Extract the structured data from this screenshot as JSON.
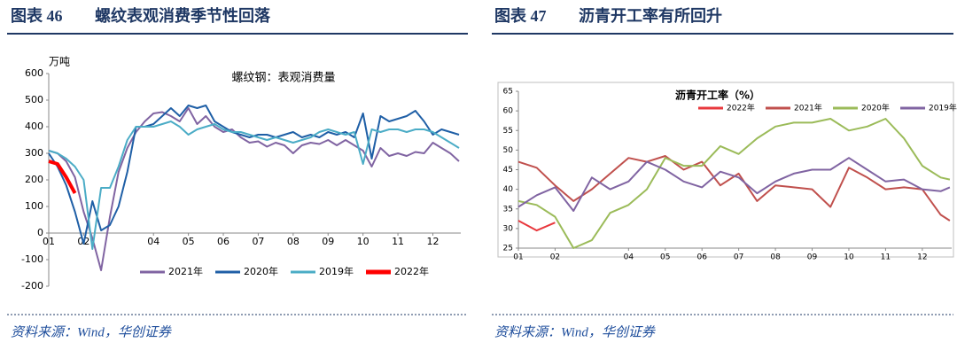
{
  "chart_data": [
    {
      "type": "line",
      "label": "图表 46",
      "title": "螺纹表观消费季节性回落",
      "annotation": "螺纹钢：表观消费量",
      "ylabel": "万吨",
      "source": "资料来源：Wind，华创证券",
      "x": [
        1,
        1.25,
        1.5,
        1.75,
        2,
        2.25,
        2.5,
        2.75,
        3,
        3.25,
        3.5,
        3.75,
        4,
        4.25,
        4.5,
        4.75,
        5,
        5.25,
        5.5,
        5.75,
        6,
        6.25,
        6.5,
        6.75,
        7,
        7.25,
        7.5,
        7.75,
        8,
        8.25,
        8.5,
        8.75,
        9,
        9.25,
        9.5,
        9.75,
        10,
        10.25,
        10.5,
        10.75,
        11,
        11.25,
        11.5,
        11.75,
        12,
        12.25,
        12.5,
        12.75
      ],
      "xlim": [
        1,
        12.8
      ],
      "xticks": [
        {
          "value": 1,
          "label": "01"
        },
        {
          "value": 2,
          "label": "02"
        },
        {
          "value": 4,
          "label": "04"
        },
        {
          "value": 5,
          "label": "05"
        },
        {
          "value": 6,
          "label": "06"
        },
        {
          "value": 7,
          "label": "07"
        },
        {
          "value": 8,
          "label": "08"
        },
        {
          "value": 9,
          "label": "09"
        },
        {
          "value": 10,
          "label": "10"
        },
        {
          "value": 11,
          "label": "11"
        },
        {
          "value": 12,
          "label": "12"
        }
      ],
      "ylim": [
        -200,
        600
      ],
      "yticks": [
        -200,
        -100,
        0,
        100,
        200,
        300,
        400,
        500,
        600
      ],
      "series": [
        {
          "name": "2021年",
          "color": "#8064a2",
          "values": [
            310,
            300,
            270,
            210,
            80,
            -20,
            -140,
            60,
            230,
            320,
            380,
            420,
            450,
            455,
            440,
            420,
            470,
            410,
            440,
            400,
            380,
            390,
            360,
            340,
            345,
            325,
            340,
            330,
            300,
            330,
            340,
            335,
            350,
            330,
            350,
            330,
            310,
            250,
            320,
            290,
            300,
            290,
            305,
            300,
            340,
            320,
            300,
            270
          ]
        },
        {
          "name": "2020年",
          "color": "#1f5fa6",
          "values": [
            300,
            250,
            180,
            80,
            -40,
            120,
            10,
            30,
            100,
            230,
            400,
            400,
            410,
            440,
            470,
            440,
            480,
            470,
            480,
            420,
            400,
            380,
            370,
            360,
            370,
            370,
            360,
            370,
            380,
            360,
            370,
            360,
            380,
            370,
            380,
            360,
            450,
            280,
            440,
            420,
            430,
            440,
            460,
            420,
            370,
            390,
            380,
            370
          ]
        },
        {
          "name": "2019年",
          "color": "#4bacc6",
          "values": [
            310,
            300,
            280,
            250,
            200,
            -60,
            170,
            170,
            250,
            350,
            400,
            400,
            400,
            410,
            420,
            400,
            370,
            390,
            400,
            410,
            390,
            380,
            380,
            370,
            360,
            350,
            360,
            350,
            340,
            350,
            360,
            380,
            390,
            380,
            370,
            380,
            260,
            390,
            380,
            390,
            390,
            380,
            390,
            390,
            380,
            360,
            340,
            320
          ]
        },
        {
          "name": "2022年",
          "color": "#ff0000",
          "values": [
            270,
            260,
            210,
            150,
            null,
            null,
            null,
            null,
            null,
            null,
            null,
            null,
            null,
            null,
            null,
            null,
            null,
            null,
            null,
            null,
            null,
            null,
            null,
            null,
            null,
            null,
            null,
            null,
            null,
            null,
            null,
            null,
            null,
            null,
            null,
            null,
            null,
            null,
            null,
            null,
            null,
            null,
            null,
            null,
            null,
            null,
            null,
            null
          ]
        }
      ]
    },
    {
      "type": "line",
      "label": "图表 47",
      "title": "沥青开工率有所回升",
      "annotation": "沥青开工率（%）",
      "source": "资料来源：Wind，华创证券",
      "x": [
        1,
        1.5,
        2,
        2.5,
        3,
        3.5,
        4,
        4.5,
        5,
        5.5,
        6,
        6.5,
        7,
        7.5,
        8,
        8.5,
        9,
        9.5,
        10,
        10.5,
        11,
        11.5,
        12,
        12.5,
        12.75
      ],
      "xlim": [
        1,
        12.8
      ],
      "xticks": [
        {
          "value": 1,
          "label": "01"
        },
        {
          "value": 2,
          "label": "02"
        },
        {
          "value": 4,
          "label": "04"
        },
        {
          "value": 5,
          "label": "05"
        },
        {
          "value": 6,
          "label": "06"
        },
        {
          "value": 7,
          "label": "07"
        },
        {
          "value": 8,
          "label": "08"
        },
        {
          "value": 9,
          "label": "09"
        },
        {
          "value": 10,
          "label": "10"
        },
        {
          "value": 11,
          "label": "11"
        },
        {
          "value": 12,
          "label": "12"
        }
      ],
      "ylim": [
        25,
        65
      ],
      "yticks": [
        25,
        30,
        35,
        40,
        45,
        50,
        55,
        60,
        65
      ],
      "series": [
        {
          "name": "2022年",
          "color": "#e8383d",
          "values": [
            32,
            29.5,
            31.5,
            null,
            null,
            null,
            null,
            null,
            null,
            null,
            null,
            null,
            null,
            null,
            null,
            null,
            null,
            null,
            null,
            null,
            null,
            null,
            null,
            null,
            null
          ]
        },
        {
          "name": "2021年",
          "color": "#c0504d",
          "values": [
            47,
            45.5,
            41,
            37,
            40,
            44,
            48,
            47,
            48.5,
            45,
            47,
            41,
            44,
            37,
            41,
            40.5,
            40,
            35.5,
            45.5,
            43,
            40,
            40.5,
            40,
            33.5,
            32
          ]
        },
        {
          "name": "2020年",
          "color": "#9bbb59",
          "values": [
            37,
            36,
            33,
            25,
            27,
            34,
            36,
            40,
            48,
            46,
            46,
            51,
            49,
            53,
            56,
            57,
            57,
            58,
            55,
            56,
            58,
            53,
            46,
            43,
            42.5
          ]
        },
        {
          "name": "2019年",
          "color": "#8064a2",
          "values": [
            35.5,
            38.5,
            40.5,
            34.5,
            43,
            40,
            42,
            47,
            45,
            42,
            40.5,
            44.5,
            43,
            39,
            42,
            44,
            45,
            45,
            48,
            45,
            42,
            42.5,
            40,
            39.5,
            40.5
          ]
        }
      ]
    }
  ]
}
